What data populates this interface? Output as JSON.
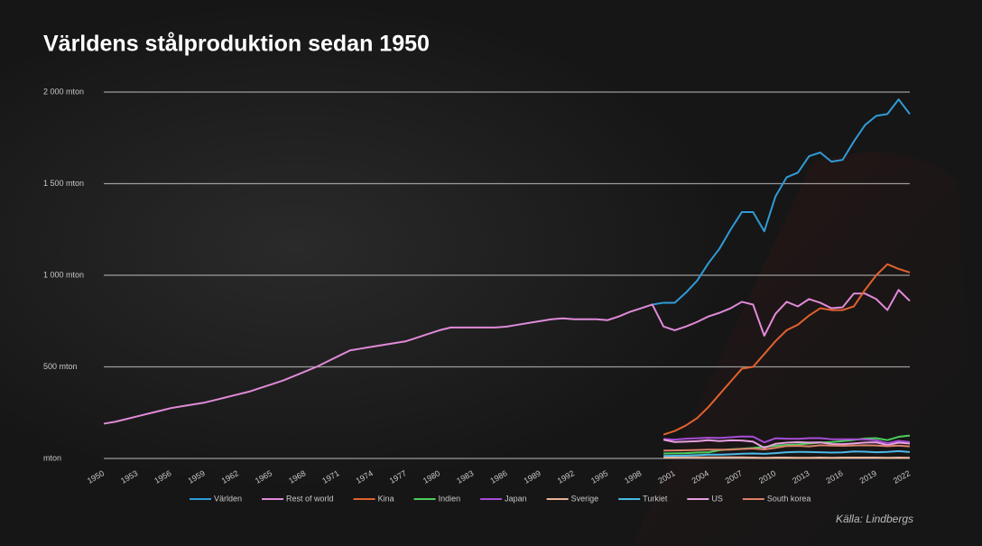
{
  "chart_data": {
    "type": "line",
    "title": "Världens stålproduktion sedan 1950",
    "source": "Källa: Lindbergs",
    "x": [
      1950,
      1951,
      1952,
      1953,
      1954,
      1955,
      1956,
      1957,
      1958,
      1959,
      1960,
      1961,
      1962,
      1963,
      1964,
      1965,
      1966,
      1967,
      1968,
      1969,
      1970,
      1971,
      1972,
      1973,
      1974,
      1975,
      1976,
      1977,
      1978,
      1979,
      1980,
      1981,
      1982,
      1983,
      1984,
      1985,
      1986,
      1987,
      1988,
      1989,
      1990,
      1991,
      1992,
      1993,
      1994,
      1995,
      1996,
      1997,
      1998,
      1999,
      2000,
      2001,
      2002,
      2003,
      2004,
      2005,
      2006,
      2007,
      2008,
      2009,
      2010,
      2011,
      2012,
      2013,
      2014,
      2015,
      2016,
      2017,
      2018,
      2019,
      2020,
      2021,
      2022
    ],
    "xlim": [
      1950,
      2022
    ],
    "xticks": [
      1950,
      1953,
      1956,
      1959,
      1962,
      1965,
      1968,
      1971,
      1974,
      1977,
      1980,
      1983,
      1986,
      1989,
      1992,
      1995,
      1998,
      2001,
      2004,
      2007,
      2010,
      2013,
      2016,
      2019,
      2022
    ],
    "ylim": [
      0,
      2000
    ],
    "yticks": [
      {
        "value": 0,
        "label": "mton"
      },
      {
        "value": 500,
        "label": "500 mton"
      },
      {
        "value": 1000,
        "label": "1 000 mton"
      },
      {
        "value": 1500,
        "label": "1 500 mton"
      },
      {
        "value": 2000,
        "label": "2 000 mton"
      }
    ],
    "grid": true,
    "legend": "bottom",
    "series": [
      {
        "name": "Världen",
        "color": "#2f9bd6",
        "values": [
          null,
          null,
          null,
          null,
          null,
          null,
          null,
          null,
          null,
          null,
          null,
          null,
          null,
          null,
          null,
          null,
          null,
          null,
          null,
          null,
          null,
          null,
          null,
          null,
          null,
          null,
          null,
          null,
          null,
          null,
          null,
          null,
          null,
          null,
          null,
          null,
          null,
          null,
          null,
          null,
          null,
          null,
          null,
          null,
          null,
          null,
          null,
          null,
          null,
          840,
          850,
          850,
          905,
          970,
          1065,
          1145,
          1250,
          1345,
          1345,
          1240,
          1430,
          1535,
          1560,
          1650,
          1670,
          1620,
          1630,
          1730,
          1820,
          1870,
          1880,
          1960,
          1880
        ]
      },
      {
        "name": "Rest of world",
        "color": "#e08ad8",
        "values": [
          190,
          200,
          215,
          230,
          245,
          260,
          275,
          285,
          295,
          305,
          320,
          335,
          350,
          365,
          385,
          405,
          425,
          450,
          475,
          500,
          530,
          560,
          590,
          600,
          610,
          620,
          630,
          640,
          660,
          680,
          700,
          715,
          715,
          715,
          715,
          715,
          720,
          730,
          740,
          750,
          760,
          765,
          760,
          760,
          760,
          755,
          775,
          800,
          820,
          840,
          720,
          700,
          720,
          745,
          775,
          795,
          820,
          855,
          840,
          670,
          790,
          855,
          830,
          870,
          850,
          820,
          825,
          900,
          900,
          870,
          810,
          920,
          860
        ]
      },
      {
        "name": "Kina",
        "color": "#e0622e",
        "values": [
          null,
          null,
          null,
          null,
          null,
          null,
          null,
          null,
          null,
          null,
          null,
          null,
          null,
          null,
          null,
          null,
          null,
          null,
          null,
          null,
          null,
          null,
          null,
          null,
          null,
          null,
          null,
          null,
          null,
          null,
          null,
          null,
          null,
          null,
          null,
          null,
          null,
          null,
          null,
          null,
          null,
          null,
          null,
          null,
          null,
          null,
          null,
          null,
          null,
          null,
          130,
          150,
          180,
          220,
          280,
          350,
          420,
          490,
          500,
          570,
          640,
          700,
          730,
          780,
          820,
          810,
          810,
          830,
          920,
          1000,
          1060,
          1035,
          1015
        ]
      },
      {
        "name": "Indien",
        "color": "#4ccf5a",
        "values": [
          null,
          null,
          null,
          null,
          null,
          null,
          null,
          null,
          null,
          null,
          null,
          null,
          null,
          null,
          null,
          null,
          null,
          null,
          null,
          null,
          null,
          null,
          null,
          null,
          null,
          null,
          null,
          null,
          null,
          null,
          null,
          null,
          null,
          null,
          null,
          null,
          null,
          null,
          null,
          null,
          null,
          null,
          null,
          null,
          null,
          null,
          null,
          null,
          null,
          null,
          27,
          28,
          29,
          32,
          33,
          45,
          50,
          53,
          57,
          63,
          69,
          74,
          77,
          81,
          87,
          89,
          95,
          101,
          109,
          111,
          100,
          118,
          125
        ]
      },
      {
        "name": "Japan",
        "color": "#a64dd6",
        "values": [
          null,
          null,
          null,
          null,
          null,
          null,
          null,
          null,
          null,
          null,
          null,
          null,
          null,
          null,
          null,
          null,
          null,
          null,
          null,
          null,
          null,
          null,
          null,
          null,
          null,
          null,
          null,
          null,
          null,
          null,
          null,
          null,
          null,
          null,
          null,
          null,
          null,
          null,
          null,
          null,
          null,
          null,
          null,
          null,
          null,
          null,
          null,
          null,
          null,
          null,
          106,
          103,
          108,
          110,
          113,
          112,
          116,
          120,
          119,
          88,
          110,
          108,
          107,
          111,
          111,
          105,
          105,
          105,
          104,
          99,
          83,
          96,
          89
        ]
      },
      {
        "name": "Sverige",
        "color": "#e8b49a",
        "values": [
          null,
          null,
          null,
          null,
          null,
          null,
          null,
          null,
          null,
          null,
          null,
          null,
          null,
          null,
          null,
          null,
          null,
          null,
          null,
          null,
          null,
          null,
          null,
          null,
          null,
          null,
          null,
          null,
          null,
          null,
          null,
          null,
          null,
          null,
          null,
          null,
          null,
          null,
          null,
          null,
          null,
          null,
          null,
          null,
          null,
          null,
          null,
          null,
          null,
          null,
          5,
          5,
          6,
          6,
          6,
          6,
          6,
          6,
          5,
          3,
          5,
          5,
          4,
          4,
          5,
          4,
          5,
          5,
          5,
          5,
          4,
          5,
          4
        ]
      },
      {
        "name": "Turkiet",
        "color": "#4db8e8",
        "values": [
          null,
          null,
          null,
          null,
          null,
          null,
          null,
          null,
          null,
          null,
          null,
          null,
          null,
          null,
          null,
          null,
          null,
          null,
          null,
          null,
          null,
          null,
          null,
          null,
          null,
          null,
          null,
          null,
          null,
          null,
          null,
          null,
          null,
          null,
          null,
          null,
          null,
          null,
          null,
          null,
          null,
          null,
          null,
          null,
          null,
          null,
          null,
          null,
          null,
          null,
          14,
          15,
          16,
          18,
          21,
          21,
          23,
          26,
          27,
          25,
          29,
          34,
          36,
          35,
          34,
          32,
          33,
          38,
          37,
          34,
          36,
          40,
          35
        ]
      },
      {
        "name": "US",
        "color": "#e8a0e0",
        "values": [
          null,
          null,
          null,
          null,
          null,
          null,
          null,
          null,
          null,
          null,
          null,
          null,
          null,
          null,
          null,
          null,
          null,
          null,
          null,
          null,
          null,
          null,
          null,
          null,
          null,
          null,
          null,
          null,
          null,
          null,
          null,
          null,
          null,
          null,
          null,
          null,
          null,
          null,
          null,
          null,
          null,
          null,
          null,
          null,
          null,
          null,
          null,
          null,
          null,
          null,
          102,
          90,
          92,
          94,
          100,
          95,
          99,
          98,
          92,
          58,
          80,
          86,
          89,
          87,
          88,
          79,
          78,
          82,
          87,
          88,
          73,
          86,
          81
        ]
      },
      {
        "name": "South korea",
        "color": "#d9826a",
        "values": [
          null,
          null,
          null,
          null,
          null,
          null,
          null,
          null,
          null,
          null,
          null,
          null,
          null,
          null,
          null,
          null,
          null,
          null,
          null,
          null,
          null,
          null,
          null,
          null,
          null,
          null,
          null,
          null,
          null,
          null,
          null,
          null,
          null,
          null,
          null,
          null,
          null,
          null,
          null,
          null,
          null,
          null,
          null,
          null,
          null,
          null,
          null,
          null,
          null,
          null,
          43,
          44,
          45,
          46,
          48,
          48,
          48,
          52,
          54,
          49,
          58,
          68,
          69,
          66,
          72,
          70,
          69,
          71,
          72,
          71,
          67,
          70,
          66
        ]
      }
    ]
  }
}
